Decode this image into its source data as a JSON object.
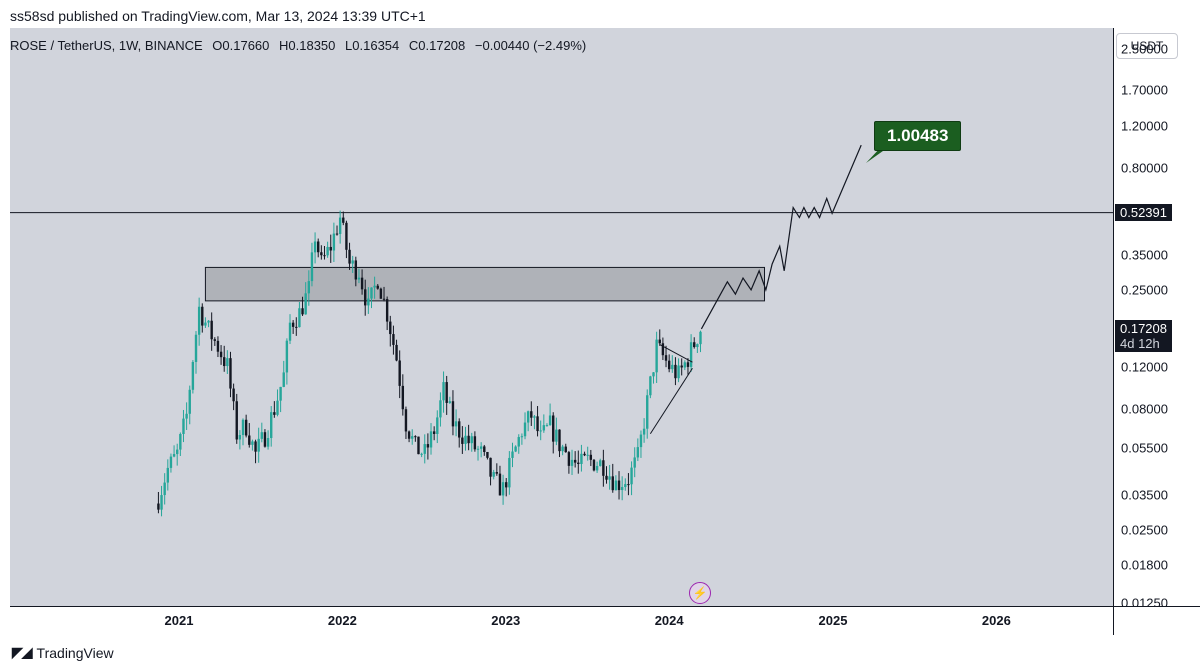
{
  "header": {
    "publisher": "ss58sd published on TradingView.com, Mar 13, 2024 13:39 UTC+1"
  },
  "symbol": {
    "name": "ROSE / TetherUS, 1W, BINANCE",
    "open": "O0.17660",
    "high": "H0.18350",
    "low": "L0.16354",
    "close": "C0.17208",
    "change": "−0.00440 (−2.49%)"
  },
  "currency": "USDT",
  "price_ticks": [
    "2.50000",
    "1.70000",
    "1.20000",
    "0.80000",
    "0.35000",
    "0.25000",
    "0.12000",
    "0.08000",
    "0.05500",
    "0.03500",
    "0.02500",
    "0.01800",
    "0.01250"
  ],
  "resistance_label": "0.52391",
  "last_price": {
    "value": "0.17208",
    "countdown": "4d 12h"
  },
  "target_label": "1.00483",
  "footer": {
    "brand": "TradingView"
  },
  "chart_data": {
    "type": "candlestick",
    "symbol": "ROSE / TetherUS",
    "interval": "1W",
    "exchange": "BINANCE",
    "log_scale": true,
    "ylim": [
      0.0105,
      3.2
    ],
    "x_ticks": [
      "2021",
      "2022",
      "2023",
      "2024",
      "2025",
      "2026"
    ],
    "colors": {
      "up": "#26a69a",
      "down": "#131722",
      "background": "#d1d4dc"
    },
    "horizontal_line": 0.52391,
    "supply_zone": {
      "from": "2021-03",
      "to": "2024-08",
      "low": 0.225,
      "high": 0.31
    },
    "projection_target": 1.00483,
    "close_path": [
      [
        "2020-11-16",
        0.034
      ],
      [
        "2020-12-07",
        0.045
      ],
      [
        "2020-12-28",
        0.052
      ],
      [
        "2021-01-18",
        0.075
      ],
      [
        "2021-02-01",
        0.13
      ],
      [
        "2021-02-15",
        0.21
      ],
      [
        "2021-03-08",
        0.17
      ],
      [
        "2021-03-29",
        0.145
      ],
      [
        "2021-04-19",
        0.12
      ],
      [
        "2021-05-10",
        0.063
      ],
      [
        "2021-05-31",
        0.068
      ],
      [
        "2021-06-21",
        0.052
      ],
      [
        "2021-07-12",
        0.062
      ],
      [
        "2021-08-02",
        0.08
      ],
      [
        "2021-08-23",
        0.11
      ],
      [
        "2021-09-06",
        0.18
      ],
      [
        "2021-09-27",
        0.2
      ],
      [
        "2021-10-18",
        0.25
      ],
      [
        "2021-11-01",
        0.42
      ],
      [
        "2021-11-15",
        0.32
      ],
      [
        "2021-12-06",
        0.38
      ],
      [
        "2021-12-27",
        0.5
      ],
      [
        "2022-01-17",
        0.32
      ],
      [
        "2022-02-07",
        0.3
      ],
      [
        "2022-02-28",
        0.21
      ],
      [
        "2022-03-21",
        0.28
      ],
      [
        "2022-04-11",
        0.2
      ],
      [
        "2022-05-02",
        0.13
      ],
      [
        "2022-05-23",
        0.07
      ],
      [
        "2022-06-13",
        0.055
      ],
      [
        "2022-07-04",
        0.052
      ],
      [
        "2022-07-25",
        0.065
      ],
      [
        "2022-08-15",
        0.095
      ],
      [
        "2022-09-05",
        0.07
      ],
      [
        "2022-10-03",
        0.06
      ],
      [
        "2022-11-07",
        0.052
      ],
      [
        "2022-12-05",
        0.04
      ],
      [
        "2022-12-26",
        0.037
      ],
      [
        "2023-01-16",
        0.05
      ],
      [
        "2023-02-06",
        0.065
      ],
      [
        "2023-02-27",
        0.075
      ],
      [
        "2023-03-20",
        0.06
      ],
      [
        "2023-04-10",
        0.068
      ],
      [
        "2023-05-01",
        0.057
      ],
      [
        "2023-06-12",
        0.046
      ],
      [
        "2023-07-03",
        0.049
      ],
      [
        "2023-08-07",
        0.047
      ],
      [
        "2023-09-04",
        0.039
      ],
      [
        "2023-10-02",
        0.041
      ],
      [
        "2023-10-23",
        0.05
      ],
      [
        "2023-11-13",
        0.085
      ],
      [
        "2023-12-04",
        0.145
      ],
      [
        "2024-01-01",
        0.12
      ],
      [
        "2024-01-22",
        0.11
      ],
      [
        "2024-02-12",
        0.13
      ],
      [
        "2024-03-11",
        0.172
      ]
    ]
  }
}
